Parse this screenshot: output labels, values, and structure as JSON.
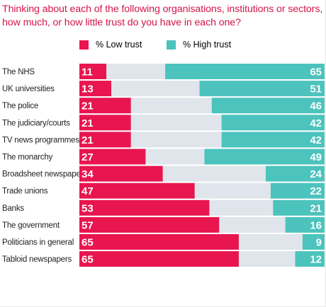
{
  "chart_data": {
    "type": "bar",
    "stacked": true,
    "title": "Thinking about each of the following organisations, institutions or sectors, how much, or how little trust do you have in each one?",
    "legend_position": "top",
    "xlim": [
      0,
      100
    ],
    "categories": [
      "The NHS",
      "UK universities",
      "The police",
      "The judiciary/courts",
      "TV news programmes",
      "The monarchy",
      "Broadsheet newspapers",
      "Trade unions",
      "Banks",
      "The government",
      "Politicians in general",
      "Tabloid newspapers"
    ],
    "series": [
      {
        "name": "% Low trust",
        "color": "#e8154f",
        "values": [
          11,
          13,
          21,
          21,
          21,
          27,
          34,
          47,
          53,
          57,
          65,
          65
        ]
      },
      {
        "name": "% High trust",
        "color": "#4cc3bd",
        "values": [
          65,
          51,
          46,
          42,
          42,
          49,
          24,
          22,
          21,
          16,
          9,
          12
        ]
      }
    ],
    "remainder_color": "#dfe5eb",
    "grid": false
  }
}
